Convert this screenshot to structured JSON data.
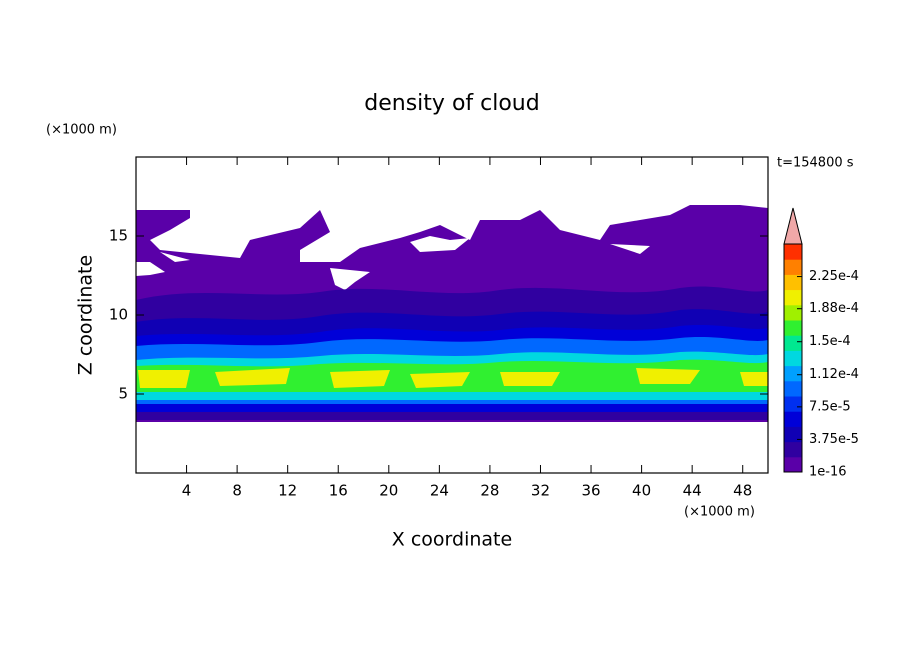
{
  "chart_data": {
    "type": "contour",
    "title": "density of cloud",
    "time_label": "t=154800 s",
    "x_label": "X coordinate",
    "y_label": "Z coordinate",
    "x_unit": "(×1000 m)",
    "y_unit": "(×1000 m)",
    "xlim": [
      0,
      50
    ],
    "xticks": [
      4,
      8,
      12,
      16,
      20,
      24,
      28,
      32,
      36,
      40,
      44,
      48
    ],
    "ylim": [
      0,
      20
    ],
    "yticks": [
      5,
      10,
      15
    ],
    "colorbar": {
      "lim": [
        1e-16,
        0.0002625
      ],
      "colors": [
        "#5a00a8",
        "#3000a0",
        "#1000b4",
        "#0000d8",
        "#0030f0",
        "#0068ff",
        "#00a0ff",
        "#00d8e0",
        "#00e890",
        "#30f030",
        "#a0f000",
        "#f0f000",
        "#ffc000",
        "#ff8000",
        "#ff3000"
      ],
      "extend_color": "#f0a8a8",
      "ticks": [
        {
          "value": 1e-16,
          "label": "1e-16"
        },
        {
          "value": 3.75e-05,
          "label": "3.75e-5"
        },
        {
          "value": 7.5e-05,
          "label": "7.5e-5"
        },
        {
          "value": 0.000112,
          "label": "1.12e-4"
        },
        {
          "value": 0.00015,
          "label": "1.5e-4"
        },
        {
          "value": 0.000188,
          "label": "1.88e-4"
        },
        {
          "value": 0.000225,
          "label": "2.25e-4"
        }
      ]
    }
  }
}
